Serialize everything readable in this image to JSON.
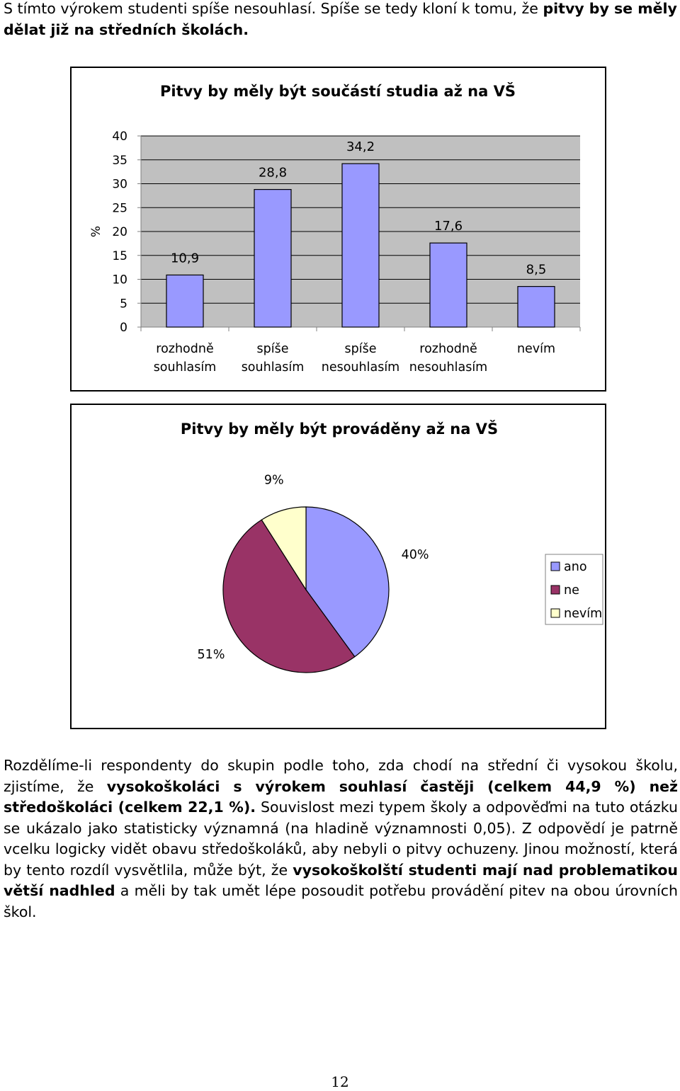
{
  "intro": {
    "text1": "S tímto výrokem studenti spíše nesouhlasí. Spíše se tedy kloní k tomu, že ",
    "bold1": "pitvy by se měly dělat již na středních školách."
  },
  "colors": {
    "bar_fill": "#9999ff",
    "plot_bg": "#c0c0c0",
    "pie_ano": "#9999ff",
    "pie_ne": "#993366",
    "pie_nevim": "#ffffcc"
  },
  "chart_data": [
    {
      "type": "bar",
      "title": "Pitvy by měly být součástí studia až na VŠ",
      "ylabel": "%",
      "xlabel": "",
      "ylim": [
        0,
        40
      ],
      "yticks": [
        "40",
        "35",
        "30",
        "25",
        "20",
        "15",
        "10",
        "5",
        "0"
      ],
      "categories": [
        [
          "rozhodně",
          "souhlasím"
        ],
        [
          "spíše",
          "souhlasím"
        ],
        [
          "spíše",
          "nesouhlasím"
        ],
        [
          "rozhodně",
          "nesouhlasím"
        ],
        [
          "nevím"
        ]
      ],
      "values": [
        10.9,
        28.8,
        34.2,
        17.6,
        8.5
      ],
      "data_labels": [
        "10,9",
        "28,8",
        "34,2",
        "17,6",
        "8,5"
      ],
      "grid": true
    },
    {
      "type": "pie",
      "title": "Pitvy by měly být prováděny až na VŠ",
      "categories": [
        "ano",
        "ne",
        "nevím"
      ],
      "values": [
        40,
        51,
        9
      ],
      "data_labels": [
        "40%",
        "51%",
        "9%"
      ],
      "legend_position": "right"
    }
  ],
  "body": {
    "t1": "Rozdělíme-li respondenty do skupin podle toho, zda chodí na střední či vysokou školu, zjistíme, že ",
    "b1": "vysokoškoláci s výrokem souhlasí častěji (celkem 44,9 %) než středoškoláci (celkem 22,1 %).",
    "t2": " Souvislost mezi typem školy a odpověďmi na tuto otázku se ukázalo jako statisticky významná (na hladině významnosti 0,05). Z odpovědí je patrně vcelku logicky vidět obavu středoškoláků, aby nebyli o pitvy ochuzeny. Jinou možností, která by tento rozdíl vysvětlila, může být, že ",
    "b2": "vysokoškolští studenti mají nad problematikou větší nadhled",
    "t3": " a měli by tak umět lépe posoudit potřebu provádění pitev na obou úrovních škol."
  },
  "page_number": "12"
}
